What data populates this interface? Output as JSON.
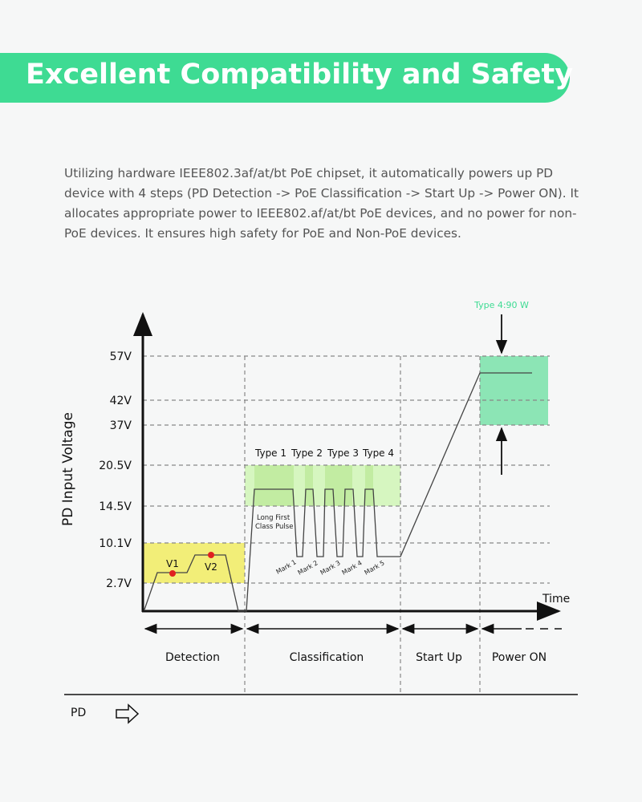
{
  "title": "Excellent Compatibility and Safety",
  "description": "Utilizing hardware IEEE802.3af/at/bt PoE chipset, it automatically powers up PD device with 4 steps (PD Detection -> PoE Classification -> Start Up -> Power ON). It allocates appropriate power to IEEE802.af/at/bt PoE devices, and no power for non-PoE devices. It ensures high safety for PoE and Non-PoE devices.",
  "diagram": {
    "y_axis_label": "PD Input Voltage",
    "x_axis_label": "Time",
    "voltage_levels": [
      "57V",
      "42V",
      "37V",
      "20.5V",
      "14.5V",
      "10.1V",
      "2.7V"
    ],
    "detection_points": [
      "V1",
      "V2"
    ],
    "class_types": [
      "Type 1",
      "Type 2",
      "Type 3",
      "Type 4"
    ],
    "pulse_note_1": "Long First",
    "pulse_note_2": "Class Pulse",
    "marks": [
      "Mark 1",
      "Mark 2",
      "Mark 3",
      "Mark 4",
      "Mark 5"
    ],
    "power_note": "Type 4:90 W",
    "phases": [
      "Detection",
      "Classification",
      "Start Up",
      "Power ON"
    ],
    "pd_label": "PD",
    "colors": {
      "banner": "#3edb93",
      "detection": "#f2ee78",
      "classification": "#d6f6c0",
      "power": "#8ce5b5",
      "dots": "#e02020"
    }
  }
}
